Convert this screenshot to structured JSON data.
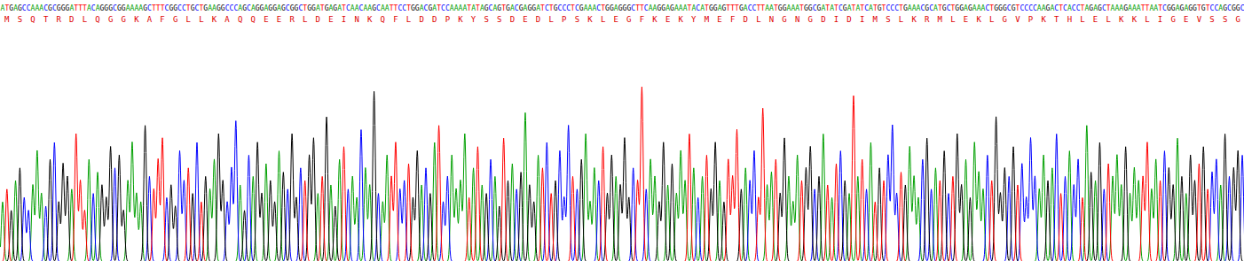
{
  "chart_data": {
    "type": "chromatogram",
    "sequence": "ATGAGCCAAACGCGGGATTTACAGGGCGGAAAAGCTTTCGGCCTGCTGAAGGCCCAGCAGGAGGAGCGGCTGGATGAGATCAACAAGCAATTCCTGGACGATCCAAAATATAGCAGTGACGAGGATCTGCCCTCGAAACTGGAGGGCTTCAAGGAGAAATACATGGAGTTTGACCTTAATGGAAATGGCGATATCGATATCATGTCCCTGAAACGCATGCTGGAGAAACTGGGCGTCCCCAAGACTCACCTAGAGCTAAAGAAATTAATCGGAGAGGTGTCCAGCGGC",
    "translation": "MSQTRDLQGGKAFGLLKAQQEERLDEINKQFLDDPKYSSDEDLPSKLEGFKEKYMEFDLNGNGDIDIMSLKRMLEKLGVPKTHLELKKLIGEVSSG",
    "series": [
      {
        "name": "A",
        "color": "#00a000"
      },
      {
        "name": "C",
        "color": "#0000ff"
      },
      {
        "name": "G",
        "color": "#000000"
      },
      {
        "name": "T",
        "color": "#ff0000"
      }
    ],
    "peak_heights": [
      70,
      85,
      60,
      95,
      110,
      75,
      60,
      90,
      130,
      80,
      65,
      120,
      140,
      70,
      115,
      100,
      85,
      150,
      95,
      60,
      120,
      80,
      105,
      90,
      75,
      135,
      110,
      125,
      60,
      95,
      140,
      80,
      70,
      160,
      100,
      85,
      120,
      145,
      75,
      90,
      65,
      130,
      95,
      110,
      80,
      140,
      70,
      100,
      85,
      120,
      150,
      95,
      70,
      110,
      165,
      90,
      60,
      125,
      100,
      140,
      80,
      115,
      95,
      70,
      130,
      105,
      85,
      150,
      75,
      110,
      95,
      125,
      145,
      80,
      100,
      170,
      90,
      65,
      120,
      135,
      85,
      100,
      75,
      155,
      110,
      90,
      200,
      80,
      70,
      125,
      100,
      140,
      85,
      95,
      115,
      75,
      130,
      90,
      110,
      80,
      140,
      160,
      70,
      100,
      125,
      85,
      95,
      150,
      75,
      110,
      135,
      90,
      80,
      120,
      100,
      65,
      145,
      95,
      115,
      85,
      105,
      175,
      90,
      70,
      125,
      110,
      140,
      80,
      95,
      130,
      75,
      160,
      100,
      85,
      120,
      150,
      70,
      110,
      95,
      135,
      80,
      125,
      100,
      90,
      145,
      75,
      110,
      95,
      205,
      85,
      120,
      100,
      70,
      140,
      90,
      115,
      80,
      130,
      95,
      150,
      110,
      75,
      100,
      125,
      85,
      140,
      95,
      70,
      120,
      100,
      155,
      85,
      110,
      95,
      130,
      75,
      180,
      90,
      105,
      120,
      80,
      145,
      100,
      70,
      125,
      95,
      110,
      135,
      85,
      100,
      150,
      90,
      75,
      115,
      130,
      95,
      80,
      195,
      100,
      120,
      85,
      140,
      70,
      110,
      95,
      125,
      160,
      80,
      105,
      90,
      135,
      100,
      75,
      120,
      145,
      85,
      110,
      95,
      130,
      80,
      100,
      150,
      90,
      120,
      75,
      140,
      105,
      85,
      125,
      95,
      170,
      80,
      110,
      100,
      135,
      90,
      115,
      75,
      145,
      100,
      85,
      125,
      95,
      110,
      150,
      80,
      100,
      130,
      90,
      120,
      75,
      160,
      105,
      95,
      140,
      85,
      115,
      100,
      125,
      90,
      135,
      80,
      110,
      95,
      100,
      140,
      85,
      120,
      95,
      130,
      110,
      90,
      145,
      100,
      80,
      125,
      95,
      115,
      135,
      85,
      105,
      120,
      90,
      150,
      100,
      110,
      130,
      125
    ],
    "ylim": [
      0,
      280
    ],
    "tick_labels": false
  }
}
